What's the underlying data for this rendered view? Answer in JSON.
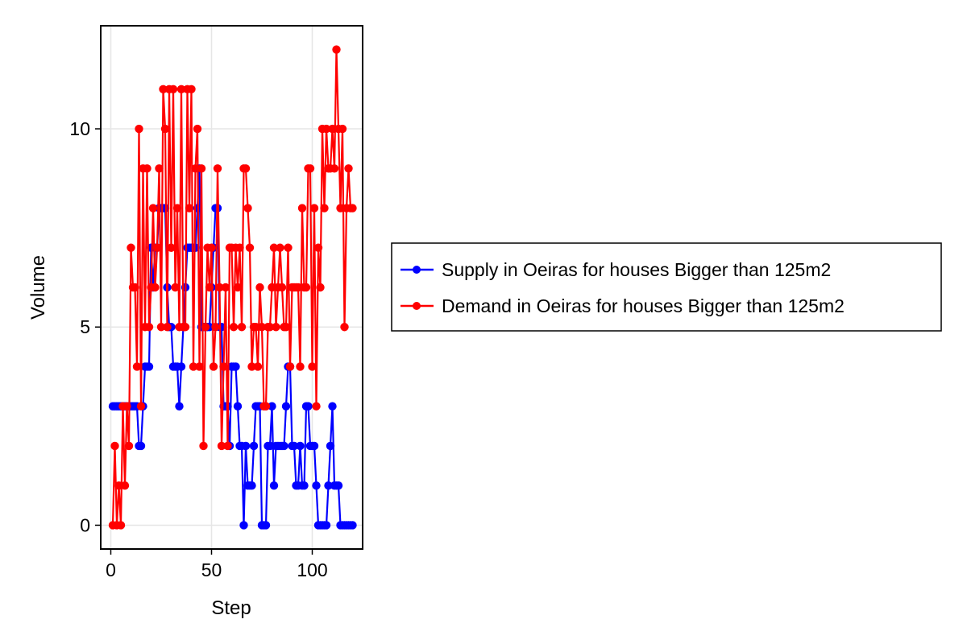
{
  "chart_data": {
    "type": "line",
    "title": "",
    "xlabel": "Step",
    "ylabel": "Volume",
    "xlim": [
      -5,
      125
    ],
    "ylim": [
      -0.6,
      12.6
    ],
    "xticks": [
      0,
      50,
      100
    ],
    "yticks": [
      0,
      5,
      10
    ],
    "grid": true,
    "legend_position": "right",
    "series": [
      {
        "name": "Supply in Oeiras for houses Bigger than 125m2",
        "color": "#0000ff",
        "marker": "circle",
        "x": [
          1,
          2,
          3,
          4,
          5,
          6,
          7,
          8,
          9,
          10,
          11,
          12,
          13,
          14,
          15,
          16,
          17,
          18,
          19,
          20,
          21,
          22,
          23,
          24,
          25,
          26,
          27,
          28,
          29,
          30,
          31,
          32,
          33,
          34,
          35,
          36,
          37,
          38,
          39,
          40,
          41,
          42,
          43,
          44,
          45,
          46,
          47,
          48,
          49,
          50,
          51,
          52,
          53,
          54,
          55,
          56,
          57,
          58,
          59,
          60,
          61,
          62,
          63,
          64,
          65,
          66,
          67,
          68,
          69,
          70,
          71,
          72,
          73,
          74,
          75,
          76,
          77,
          78,
          79,
          80,
          81,
          82,
          83,
          84,
          85,
          86,
          87,
          88,
          89,
          90,
          91,
          92,
          93,
          94,
          95,
          96,
          97,
          98,
          99,
          100,
          101,
          102,
          103,
          104,
          105,
          106,
          107,
          108,
          109,
          110,
          111,
          112,
          113,
          114,
          115,
          116,
          117,
          118,
          119,
          120
        ],
        "y": [
          3,
          3,
          3,
          3,
          3,
          3,
          3,
          3,
          3,
          3,
          3,
          3,
          3,
          2,
          2,
          3,
          4,
          4,
          4,
          7,
          6,
          7,
          7,
          8,
          8,
          8,
          8,
          6,
          5,
          5,
          4,
          4,
          4,
          3,
          4,
          5,
          6,
          7,
          7,
          7,
          7,
          7,
          8,
          9,
          5,
          5,
          5,
          5,
          5,
          6,
          7,
          8,
          8,
          5,
          5,
          3,
          3,
          3,
          2,
          4,
          4,
          4,
          3,
          2,
          2,
          0,
          2,
          1,
          1,
          1,
          2,
          3,
          3,
          3,
          0,
          0,
          0,
          2,
          2,
          3,
          1,
          2,
          2,
          2,
          2,
          2,
          3,
          4,
          4,
          2,
          2,
          1,
          1,
          2,
          1,
          1,
          3,
          3,
          2,
          2,
          2,
          1,
          0,
          0,
          0,
          0,
          0,
          1,
          2,
          3,
          1,
          1,
          1,
          0,
          0,
          0,
          0,
          0,
          0,
          0
        ]
      },
      {
        "name": "Demand in Oeiras for houses Bigger than 125m2",
        "color": "#ff0000",
        "marker": "circle",
        "x": [
          1,
          2,
          3,
          4,
          5,
          6,
          7,
          8,
          9,
          10,
          11,
          12,
          13,
          14,
          15,
          16,
          17,
          18,
          19,
          20,
          21,
          22,
          23,
          24,
          25,
          26,
          27,
          28,
          29,
          30,
          31,
          32,
          33,
          34,
          35,
          36,
          37,
          38,
          39,
          40,
          41,
          42,
          43,
          44,
          45,
          46,
          47,
          48,
          49,
          50,
          51,
          52,
          53,
          54,
          55,
          56,
          57,
          58,
          59,
          60,
          61,
          62,
          63,
          64,
          65,
          66,
          67,
          68,
          69,
          70,
          71,
          72,
          73,
          74,
          75,
          76,
          77,
          78,
          79,
          80,
          81,
          82,
          83,
          84,
          85,
          86,
          87,
          88,
          89,
          90,
          91,
          92,
          93,
          94,
          95,
          96,
          97,
          98,
          99,
          100,
          101,
          102,
          103,
          104,
          105,
          106,
          107,
          108,
          109,
          110,
          111,
          112,
          113,
          114,
          115,
          116,
          117,
          118,
          119,
          120
        ],
        "y": [
          0,
          2,
          0,
          1,
          0,
          3,
          1,
          3,
          2,
          7,
          6,
          6,
          4,
          10,
          3,
          9,
          5,
          9,
          5,
          6,
          8,
          6,
          7,
          9,
          5,
          11,
          10,
          5,
          11,
          7,
          11,
          6,
          8,
          5,
          11,
          5,
          5,
          11,
          8,
          11,
          4,
          9,
          10,
          4,
          9,
          2,
          5,
          7,
          6,
          7,
          4,
          5,
          9,
          6,
          2,
          4,
          6,
          2,
          7,
          7,
          5,
          7,
          6,
          7,
          5,
          9,
          9,
          8,
          7,
          4,
          5,
          5,
          4,
          6,
          5,
          3,
          3,
          5,
          5,
          6,
          7,
          5,
          6,
          7,
          6,
          5,
          5,
          7,
          4,
          6,
          6,
          6,
          6,
          4,
          8,
          6,
          6,
          9,
          9,
          4,
          8,
          3,
          7,
          6,
          10,
          8,
          10,
          9,
          9,
          10,
          9,
          12,
          10,
          8,
          10,
          5,
          8,
          9,
          8,
          8
        ]
      }
    ]
  }
}
